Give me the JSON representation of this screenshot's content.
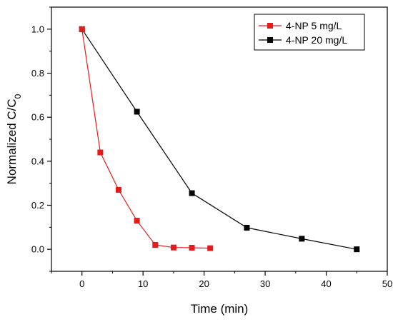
{
  "chart_data": {
    "type": "line",
    "xlabel": "Time (min)",
    "ylabel": {
      "main": "Normalized C/C",
      "subscript": "0"
    },
    "xlim": [
      -5,
      50
    ],
    "ylim": [
      -0.1,
      1.1
    ],
    "xticks": [
      0,
      10,
      20,
      30,
      40,
      50
    ],
    "yticks": [
      0.0,
      0.2,
      0.4,
      0.6,
      0.8,
      1.0
    ],
    "xtick_labels": [
      "0",
      "10",
      "20",
      "30",
      "40",
      "50"
    ],
    "ytick_labels": [
      "0.0",
      "0.2",
      "0.4",
      "0.6",
      "0.8",
      "1.0"
    ],
    "grid": false,
    "legend_position": "top-right",
    "series": [
      {
        "name": "4-NP 5 mg/L",
        "color": "#e41a1c",
        "marker": "square",
        "x": [
          0,
          3,
          6,
          9,
          12,
          15,
          18,
          21
        ],
        "y": [
          1.0,
          0.44,
          0.27,
          0.13,
          0.02,
          0.008,
          0.007,
          0.005
        ]
      },
      {
        "name": "4-NP 20 mg/L",
        "color": "#000000",
        "marker": "square",
        "x": [
          0,
          9,
          18,
          27,
          36,
          45
        ],
        "y": [
          1.0,
          0.625,
          0.255,
          0.098,
          0.048,
          0.0
        ]
      }
    ]
  }
}
